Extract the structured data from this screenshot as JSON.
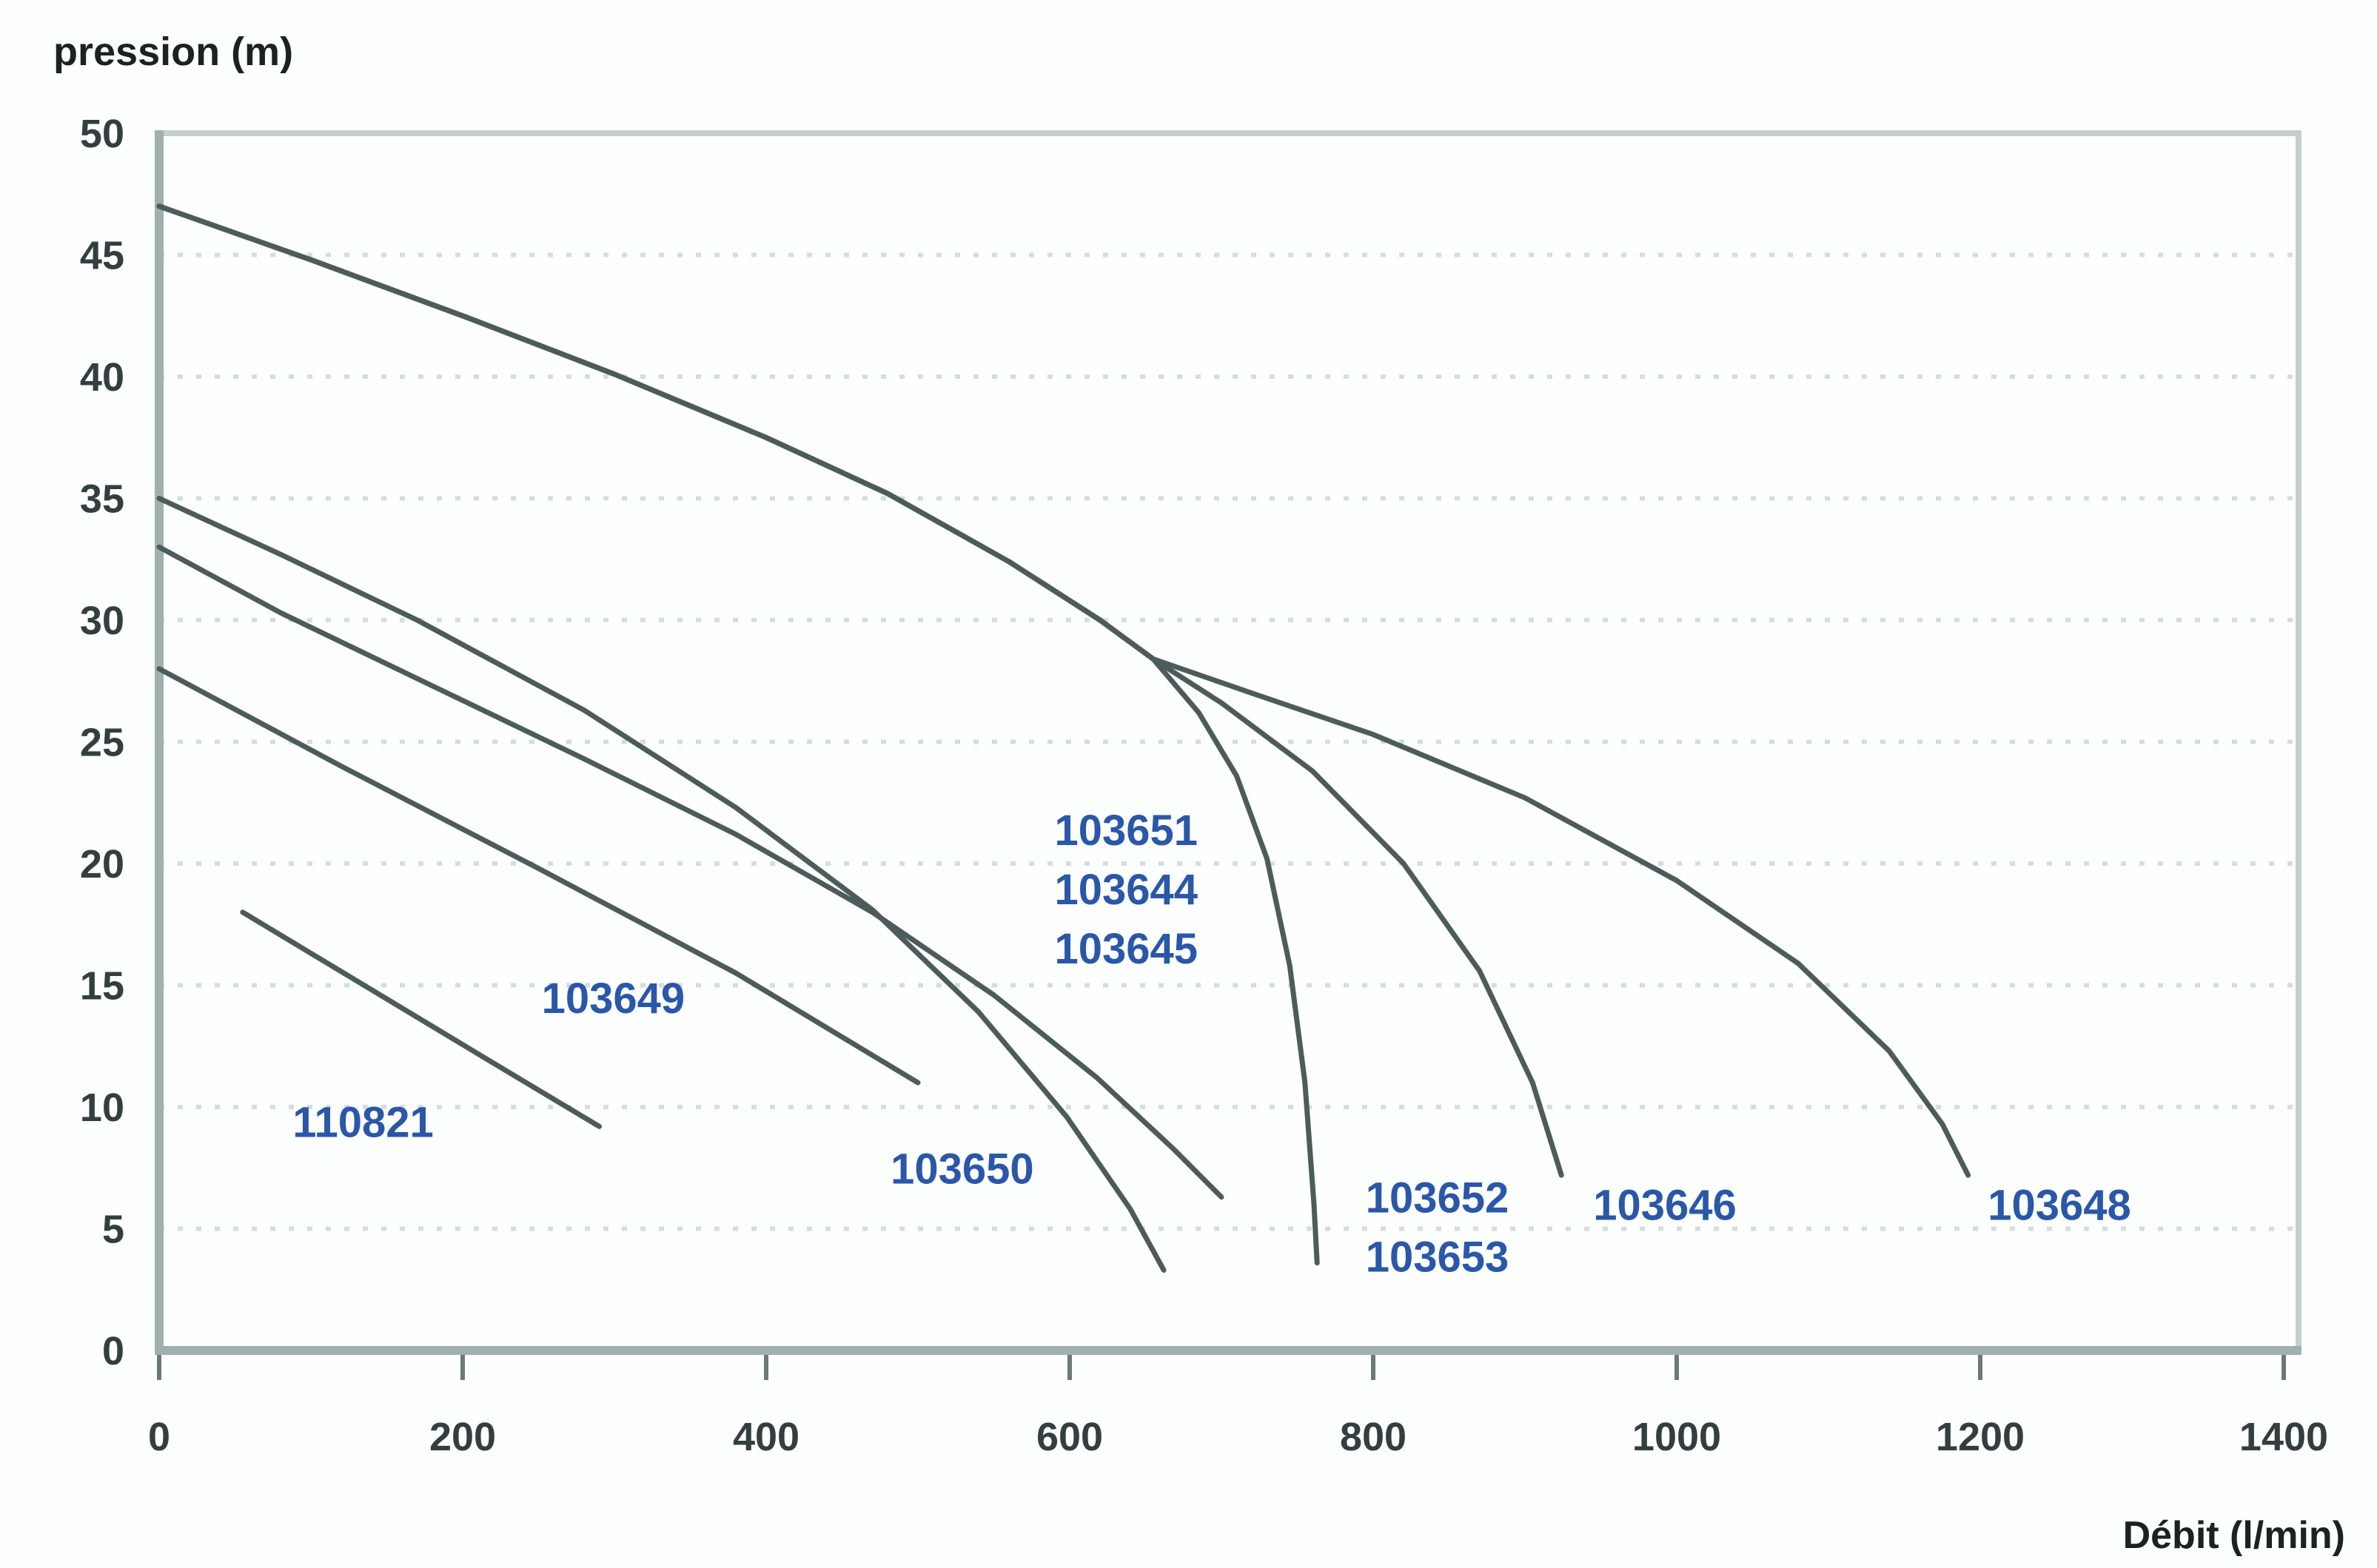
{
  "style": {
    "background": "#fdfefe",
    "curve_color": "#4c5c5a",
    "series_label_color": "#2a57a8",
    "tick_label_color": "#333f3f",
    "axis_title_color": "#1b2322",
    "grid_color": "#d4dedd",
    "axis_color": "#9fb0ae",
    "border_color": "#c3cfcd",
    "tick_mark_color": "#6a7a78"
  },
  "chart_data": {
    "type": "line",
    "title": "",
    "ylabel": "pression (m)",
    "xlabel": "Débit (l/min)",
    "xlim": [
      0,
      1400
    ],
    "ylim": [
      0,
      50
    ],
    "xticks": [
      0,
      200,
      400,
      600,
      800,
      1000,
      1200,
      1400
    ],
    "yticks": [
      0,
      5,
      10,
      15,
      20,
      25,
      30,
      35,
      40,
      45,
      50
    ],
    "grid": "horizontal dotted lines every 5 m",
    "legend_position": "inline blue labels next to each curve",
    "trunk_note": "curves 103652/103653, 103646 and 103648 share one common upper curve starting at (0,47) and fan out near 650 l/min",
    "trunk_points": [
      [
        0,
        47
      ],
      [
        100,
        44.8
      ],
      [
        200,
        42.5
      ],
      [
        300,
        40.1
      ],
      [
        400,
        37.5
      ],
      [
        480,
        35.2
      ],
      [
        560,
        32.4
      ],
      [
        620,
        30.0
      ],
      [
        655,
        28.4
      ]
    ],
    "series": [
      {
        "name": "110821",
        "extends_trunk": false,
        "points": [
          [
            55,
            18
          ],
          [
            135,
            15
          ],
          [
            215,
            12
          ],
          [
            290,
            9.2
          ]
        ],
        "label_lines": [
          "110821"
        ],
        "label_x": 88,
        "label_y": 9.4
      },
      {
        "name": "103649",
        "extends_trunk": false,
        "points": [
          [
            0,
            28
          ],
          [
            120,
            24
          ],
          [
            250,
            19.8
          ],
          [
            380,
            15.5
          ],
          [
            500,
            11
          ]
        ],
        "label_lines": [
          "103649"
        ],
        "label_x": 252,
        "label_y": 14.5
      },
      {
        "name": "103650",
        "extends_trunk": false,
        "points": [
          [
            0,
            35
          ],
          [
            80,
            32.7
          ],
          [
            170,
            30
          ],
          [
            280,
            26.3
          ],
          [
            380,
            22.3
          ],
          [
            470,
            18.1
          ],
          [
            540,
            13.9
          ],
          [
            598,
            9.6
          ],
          [
            640,
            5.8
          ],
          [
            662,
            3.3
          ]
        ],
        "label_lines": [
          "103650"
        ],
        "label_x": 482,
        "label_y": 7.5
      },
      {
        "name": "103651 / 103644 / 103645",
        "extends_trunk": false,
        "points": [
          [
            0,
            33
          ],
          [
            80,
            30.3
          ],
          [
            170,
            27.6
          ],
          [
            280,
            24.3
          ],
          [
            380,
            21.2
          ],
          [
            470,
            18
          ],
          [
            550,
            14.6
          ],
          [
            618,
            11.2
          ],
          [
            668,
            8.3
          ],
          [
            700,
            6.3
          ]
        ],
        "label_lines": [
          "103651",
          "103644",
          "103645"
        ],
        "label_x": 590,
        "label_y": 21.4
      },
      {
        "name": "103652 / 103653",
        "extends_trunk": true,
        "points": [
          [
            685,
            26.2
          ],
          [
            710,
            23.6
          ],
          [
            730,
            20.2
          ],
          [
            745,
            15.8
          ],
          [
            755,
            11
          ],
          [
            761,
            6
          ],
          [
            763,
            3.6
          ]
        ],
        "label_lines": [
          "103652",
          "103653"
        ],
        "label_x": 795,
        "label_y": 6.3
      },
      {
        "name": "103646",
        "extends_trunk": true,
        "points": [
          [
            700,
            26.6
          ],
          [
            760,
            23.8
          ],
          [
            820,
            20
          ],
          [
            870,
            15.6
          ],
          [
            905,
            11
          ],
          [
            924,
            7.2
          ]
        ],
        "label_lines": [
          "103646"
        ],
        "label_x": 945,
        "label_y": 6.0
      },
      {
        "name": "103648",
        "extends_trunk": true,
        "points": [
          [
            720,
            27
          ],
          [
            800,
            25.3
          ],
          [
            900,
            22.7
          ],
          [
            1000,
            19.3
          ],
          [
            1080,
            15.9
          ],
          [
            1140,
            12.3
          ],
          [
            1175,
            9.3
          ],
          [
            1192,
            7.2
          ]
        ],
        "label_lines": [
          "103648"
        ],
        "label_x": 1205,
        "label_y": 6.0
      }
    ]
  }
}
